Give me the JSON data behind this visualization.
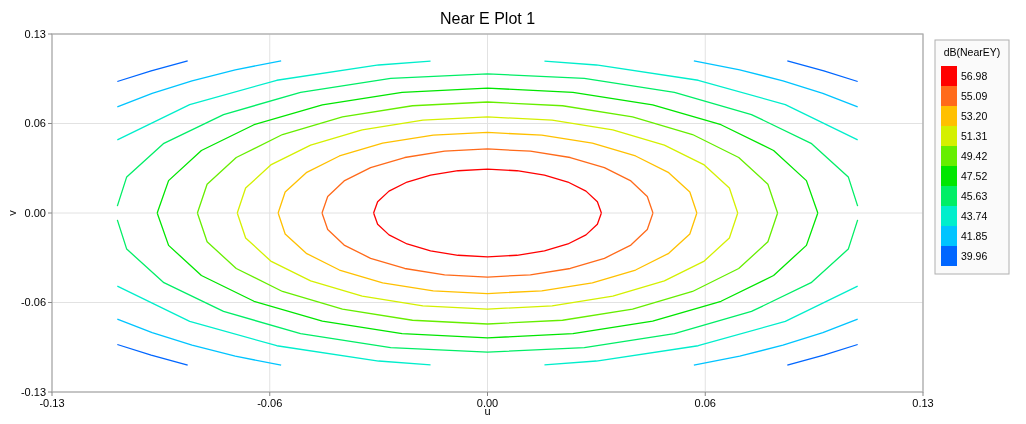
{
  "chart_data": {
    "type": "line",
    "title": "Near E Plot 1",
    "xlabel": "u",
    "ylabel": "v",
    "legend_title": "dB(NearEY)",
    "xlim": [
      -0.13,
      0.13
    ],
    "ylim": [
      -0.13,
      0.13
    ],
    "xticks": [
      -0.13,
      {
        "value": -0.065,
        "label": "-0.06"
      },
      {
        "value": 0,
        "label": "0.00"
      },
      {
        "value": 0.065,
        "label": "0.06"
      },
      0.13
    ],
    "yticks": [
      -0.13,
      {
        "value": -0.065,
        "label": "-0.06"
      },
      {
        "value": 0,
        "label": "0.00"
      },
      {
        "value": 0.065,
        "label": "0.06"
      },
      0.13
    ],
    "grid": true,
    "legend": "right",
    "series": [
      {
        "name": "56.98",
        "color": "#ff0000",
        "x": [
          0.034,
          0.0328,
          0.0294,
          0.024,
          0.017,
          0.0088,
          0,
          -0.0088,
          -0.017,
          -0.024,
          -0.0294,
          -0.0328,
          -0.034,
          null,
          -0.034,
          -0.0328,
          -0.0294,
          -0.024,
          -0.017,
          -0.0088,
          0,
          0.0088,
          0.017,
          0.024,
          0.0294,
          0.0328,
          0.034
        ],
        "values": [
          0,
          0.0082,
          0.0159,
          0.0225,
          0.0275,
          0.0307,
          0.0318,
          0.0307,
          0.0275,
          0.0225,
          0.0159,
          0.0082,
          0,
          null,
          0,
          -0.0082,
          -0.0159,
          -0.0225,
          -0.0275,
          -0.0307,
          -0.0318,
          -0.0307,
          -0.0275,
          -0.0225,
          -0.0159,
          -0.0082,
          0
        ]
      },
      {
        "name": "55.09",
        "color": "#ff6a1a",
        "x": [
          0.0494,
          0.0477,
          0.0428,
          0.0349,
          0.0247,
          0.0128,
          0,
          -0.0128,
          -0.0247,
          -0.0349,
          -0.0428,
          -0.0477,
          -0.0494,
          null,
          -0.0494,
          -0.0477,
          -0.0428,
          -0.0349,
          -0.0247,
          -0.0128,
          0,
          0.0128,
          0.0247,
          0.0349,
          0.0428,
          0.0477,
          0.0494
        ],
        "values": [
          0,
          0.012,
          0.0233,
          0.0329,
          0.0403,
          0.0449,
          0.0465,
          0.0449,
          0.0403,
          0.0329,
          0.0233,
          0.012,
          0,
          null,
          0,
          -0.012,
          -0.0233,
          -0.0329,
          -0.0403,
          -0.0449,
          -0.0465,
          -0.0449,
          -0.0403,
          -0.0329,
          -0.0233,
          -0.012,
          0
        ]
      },
      {
        "name": "53.20",
        "color": "#ffc000",
        "x": [
          0.0625,
          0.0604,
          0.0541,
          0.0442,
          0.0313,
          0.0162,
          0,
          -0.0162,
          -0.0313,
          -0.0442,
          -0.0541,
          -0.0604,
          -0.0625,
          null,
          -0.0625,
          -0.0604,
          -0.0541,
          -0.0442,
          -0.0313,
          -0.0162,
          0,
          0.0162,
          0.0313,
          0.0442,
          0.0541,
          0.0604,
          0.0625
        ],
        "values": [
          0,
          0.0152,
          0.0293,
          0.0414,
          0.0507,
          0.0565,
          0.0585,
          0.0565,
          0.0507,
          0.0414,
          0.0293,
          0.0152,
          0,
          null,
          0,
          -0.0152,
          -0.0293,
          -0.0414,
          -0.0507,
          -0.0565,
          -0.0585,
          -0.0565,
          -0.0507,
          -0.0414,
          -0.0293,
          -0.0152,
          0
        ]
      },
      {
        "name": "51.31",
        "color": "#d4f000",
        "x": [
          0.0747,
          0.0722,
          0.0647,
          0.0528,
          0.0374,
          0.0193,
          0,
          -0.0193,
          -0.0374,
          -0.0528,
          -0.0647,
          -0.0722,
          -0.0747,
          null,
          -0.0747,
          -0.0722,
          -0.0647,
          -0.0528,
          -0.0374,
          -0.0193,
          0,
          0.0193,
          0.0374,
          0.0528,
          0.0647,
          0.0722,
          0.0747
        ],
        "values": [
          0,
          0.0181,
          0.0349,
          0.0493,
          0.0604,
          0.0674,
          0.0698,
          0.0674,
          0.0604,
          0.0493,
          0.0349,
          0.0181,
          0,
          null,
          0,
          -0.0181,
          -0.0349,
          -0.0493,
          -0.0604,
          -0.0674,
          -0.0698,
          -0.0674,
          -0.0604,
          -0.0493,
          -0.0349,
          -0.0181,
          0
        ]
      },
      {
        "name": "49.42",
        "color": "#66ee00",
        "x": [
          0.0866,
          0.0837,
          0.075,
          0.0612,
          0.0433,
          0.0224,
          0,
          -0.0224,
          -0.0433,
          -0.0612,
          -0.075,
          -0.0837,
          -0.0866,
          null,
          -0.0866,
          -0.0837,
          -0.075,
          -0.0612,
          -0.0433,
          -0.0224,
          0,
          0.0224,
          0.0433,
          0.0612,
          0.075,
          0.0837,
          0.0866
        ],
        "values": [
          0,
          0.0209,
          0.0403,
          0.057,
          0.0698,
          0.0779,
          0.0806,
          0.0779,
          0.0698,
          0.057,
          0.0403,
          0.0209,
          0,
          null,
          0,
          -0.0209,
          -0.0403,
          -0.057,
          -0.0698,
          -0.0779,
          -0.0806,
          -0.0779,
          -0.0698,
          -0.057,
          -0.0403,
          -0.0209,
          0
        ]
      },
      {
        "name": "47.52",
        "color": "#00e600",
        "x": [
          0.0986,
          0.0952,
          0.0854,
          0.0697,
          0.0493,
          0.0255,
          0,
          -0.0255,
          -0.0493,
          -0.0697,
          -0.0854,
          -0.0952,
          -0.0986,
          null,
          -0.0986,
          -0.0952,
          -0.0854,
          -0.0697,
          -0.0493,
          -0.0255,
          0,
          0.0255,
          0.0493,
          0.0697,
          0.0854,
          0.0952,
          0.0986
        ],
        "values": [
          0,
          0.0235,
          0.0454,
          0.0641,
          0.0785,
          0.0876,
          0.0907,
          0.0876,
          0.0785,
          0.0641,
          0.0454,
          0.0235,
          0,
          null,
          0,
          -0.0235,
          -0.0454,
          -0.0641,
          -0.0785,
          -0.0876,
          -0.0907,
          -0.0876,
          -0.0785,
          -0.0641,
          -0.0454,
          -0.0235,
          0
        ]
      },
      {
        "name": "45.63",
        "color": "#00ee66",
        "x": [
          0.1105,
          0.1077,
          0.0966,
          0.0788,
          0.0558,
          0.0289,
          0,
          -0.0289,
          -0.0558,
          -0.0788,
          -0.0966,
          -0.1077,
          -0.1105,
          null,
          -0.1105,
          -0.1077,
          -0.0966,
          -0.0788,
          -0.0558,
          -0.0289,
          0,
          0.0289,
          0.0558,
          0.0788,
          0.0966,
          0.1077,
          0.1105
        ],
        "values": [
          0.005,
          0.0262,
          0.0506,
          0.0715,
          0.0876,
          0.0977,
          0.1011,
          0.0977,
          0.0876,
          0.0715,
          0.0506,
          0.0262,
          0.005,
          null,
          -0.005,
          -0.0262,
          -0.0506,
          -0.0715,
          -0.0876,
          -0.0977,
          -0.1011,
          -0.0977,
          -0.0876,
          -0.0715,
          -0.0506,
          -0.0262,
          -0.005
        ]
      },
      {
        "name": "43.74",
        "color": "#00eecc",
        "x": [
          -0.1105,
          -0.0889,
          -0.0629,
          -0.0325,
          -0.017,
          null,
          0.017,
          0.0325,
          0.0629,
          0.0889,
          0.1105,
          null,
          0.1105,
          0.0889,
          0.0629,
          0.0325,
          0.017,
          null,
          -0.017,
          -0.0325,
          -0.0629,
          -0.0889,
          -0.1105
        ],
        "values": [
          0.0531,
          0.0787,
          0.0964,
          0.1075,
          0.1103,
          null,
          0.1103,
          0.1075,
          0.0964,
          0.0787,
          0.0531,
          null,
          -0.0531,
          -0.0787,
          -0.0964,
          -0.1075,
          -0.1103,
          null,
          -0.1103,
          -0.1075,
          -0.0964,
          -0.0787,
          -0.0531
        ]
      },
      {
        "name": "41.85",
        "color": "#00c4ff",
        "x": [
          -0.1105,
          -0.1001,
          -0.0882,
          -0.0753,
          -0.0616,
          null,
          0.0616,
          0.0753,
          0.0882,
          0.1001,
          0.1105,
          null,
          0.1105,
          0.1001,
          0.0882,
          0.0753,
          0.0616,
          null,
          -0.0616,
          -0.0753,
          -0.0882,
          -0.1001,
          -0.1105
        ],
        "values": [
          0.077,
          0.0869,
          0.096,
          0.104,
          0.1105,
          null,
          0.1105,
          0.104,
          0.096,
          0.0869,
          0.077,
          null,
          -0.077,
          -0.0869,
          -0.096,
          -0.104,
          -0.1105,
          null,
          -0.1105,
          -0.104,
          -0.096,
          -0.0869,
          -0.077
        ]
      },
      {
        "name": "39.96",
        "color": "#0066ff",
        "x": [
          -0.1105,
          -0.1004,
          -0.0895,
          null,
          0.0895,
          0.1004,
          0.1105,
          null,
          0.1105,
          0.1004,
          0.0895,
          null,
          -0.0895,
          -0.1004,
          -0.1105
        ],
        "values": [
          0.0955,
          0.1033,
          0.1105,
          null,
          0.1105,
          0.1033,
          0.0955,
          null,
          -0.0955,
          -0.1033,
          -0.1105,
          null,
          -0.1105,
          -0.1033,
          -0.0955
        ]
      }
    ]
  }
}
